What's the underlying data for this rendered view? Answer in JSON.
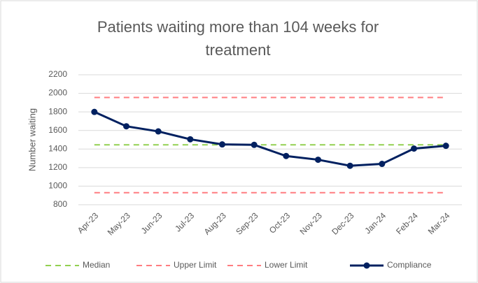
{
  "chart_data": {
    "type": "line",
    "title": "Patients waiting more than 104 weeks for treatment",
    "y_label": "Number waiting",
    "categories": [
      "Apr-23",
      "May-23",
      "Jun-23",
      "Jul-23",
      "Aug-23",
      "Sep-23",
      "Oct-23",
      "Nov-23",
      "Dec-23",
      "Jan-24",
      "Feb-24",
      "Mar-24"
    ],
    "series": [
      {
        "name": "Median",
        "color": "#92d050",
        "dashed": true,
        "marker": false,
        "values": [
          1445,
          1445,
          1445,
          1445,
          1445,
          1445,
          1445,
          1445,
          1445,
          1445,
          1445,
          1445
        ]
      },
      {
        "name": "Upper Limit",
        "color": "#ff7c80",
        "dashed": true,
        "marker": false,
        "values": [
          1955,
          1955,
          1955,
          1955,
          1955,
          1955,
          1955,
          1955,
          1955,
          1955,
          1955,
          1955
        ]
      },
      {
        "name": "Lower Limit",
        "color": "#ff7c80",
        "dashed": true,
        "marker": false,
        "values": [
          930,
          930,
          930,
          930,
          930,
          930,
          930,
          930,
          930,
          930,
          930,
          930
        ]
      },
      {
        "name": "Compliance",
        "color": "#002060",
        "dashed": false,
        "marker": true,
        "values": [
          1800,
          1645,
          1590,
          1505,
          1450,
          1445,
          1325,
          1285,
          1220,
          1240,
          1405,
          1435
        ]
      }
    ],
    "ylim": [
      800,
      2200
    ],
    "yticks": [
      800,
      1000,
      1200,
      1400,
      1600,
      1800,
      2000,
      2200
    ],
    "grid": true,
    "legend": "bottom"
  }
}
